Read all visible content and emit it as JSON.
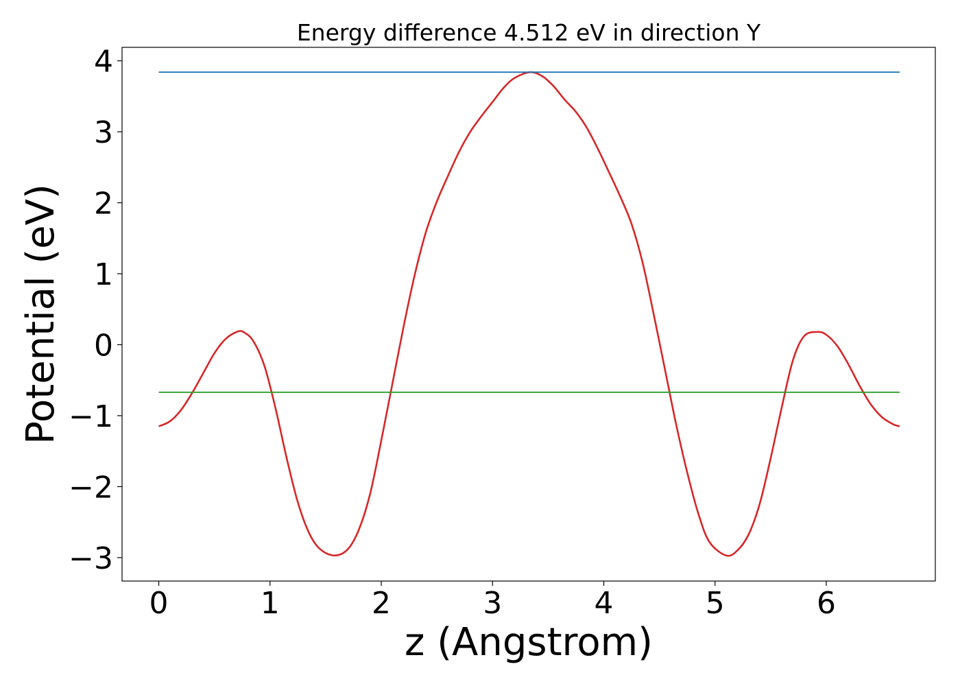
{
  "chart_data": {
    "type": "line",
    "title": "Energy difference 4.512 eV in direction Y",
    "xlabel": "z (Angstrom)",
    "ylabel": "Potential (eV)",
    "xlim": [
      -0.33,
      6.98
    ],
    "ylim": [
      -3.33,
      4.19
    ],
    "xticks": [
      0,
      1,
      2,
      3,
      4,
      5,
      6
    ],
    "yticks": [
      4,
      3,
      2,
      1,
      0,
      -1,
      -2,
      -3
    ],
    "xtick_labels": [
      "0",
      "1",
      "2",
      "3",
      "4",
      "5",
      "6"
    ],
    "ytick_labels": [
      "4",
      "3",
      "2",
      "1",
      "0",
      "−1",
      "−2",
      "−3"
    ],
    "grid": false,
    "series": [
      {
        "color": "#d62728",
        "kind": "curve",
        "x": [
          0.0,
          0.1,
          0.2,
          0.3,
          0.4,
          0.5,
          0.6,
          0.7,
          0.76,
          0.85,
          0.95,
          1.05,
          1.15,
          1.25,
          1.35,
          1.45,
          1.58,
          1.7,
          1.8,
          1.9,
          2.0,
          2.1,
          2.2,
          2.3,
          2.4,
          2.5,
          2.6,
          2.7,
          2.8,
          2.9,
          3.0,
          3.1,
          3.2,
          3.34,
          3.45,
          3.55,
          3.65,
          3.75,
          3.85,
          3.95,
          4.05,
          4.15,
          4.25,
          4.35,
          4.45,
          4.55,
          4.65,
          4.75,
          4.85,
          4.95,
          5.1,
          5.2,
          5.3,
          5.4,
          5.5,
          5.6,
          5.7,
          5.8,
          5.92,
          6.0,
          6.1,
          6.2,
          6.3,
          6.4,
          6.5,
          6.6,
          6.66
        ],
        "y": [
          -1.15,
          -1.08,
          -0.92,
          -0.68,
          -0.4,
          -0.12,
          0.08,
          0.18,
          0.18,
          0.05,
          -0.3,
          -0.9,
          -1.6,
          -2.22,
          -2.65,
          -2.88,
          -2.97,
          -2.88,
          -2.6,
          -2.1,
          -1.35,
          -0.55,
          0.25,
          0.98,
          1.58,
          2.02,
          2.38,
          2.72,
          3.0,
          3.22,
          3.42,
          3.62,
          3.76,
          3.84,
          3.78,
          3.64,
          3.45,
          3.28,
          3.05,
          2.75,
          2.42,
          2.08,
          1.7,
          1.15,
          0.42,
          -0.35,
          -1.12,
          -1.8,
          -2.38,
          -2.78,
          -2.97,
          -2.9,
          -2.68,
          -2.25,
          -1.6,
          -0.88,
          -0.22,
          0.12,
          0.18,
          0.14,
          -0.02,
          -0.28,
          -0.58,
          -0.84,
          -1.02,
          -1.12,
          -1.15
        ]
      },
      {
        "color": "#1f77b4",
        "kind": "hline",
        "x": [
          0.0,
          6.66
        ],
        "y": [
          3.84,
          3.84
        ]
      },
      {
        "color": "#2ca02c",
        "kind": "hline",
        "x": [
          0.0,
          6.66
        ],
        "y": [
          -0.67,
          -0.67
        ]
      }
    ]
  }
}
